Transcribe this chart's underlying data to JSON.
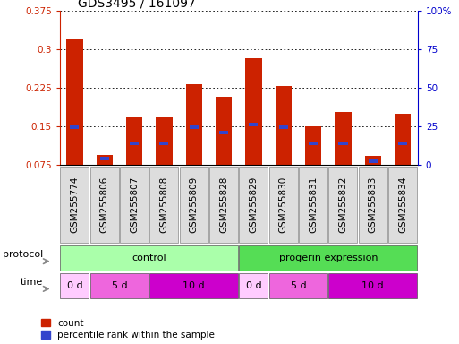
{
  "title": "GDS3495 / 161097",
  "samples": [
    "GSM255774",
    "GSM255806",
    "GSM255807",
    "GSM255808",
    "GSM255809",
    "GSM255828",
    "GSM255829",
    "GSM255830",
    "GSM255831",
    "GSM255832",
    "GSM255833",
    "GSM255834"
  ],
  "bar_heights": [
    0.32,
    0.095,
    0.168,
    0.168,
    0.232,
    0.207,
    0.283,
    0.228,
    0.15,
    0.178,
    0.093,
    0.175
  ],
  "blue_marker_heights": [
    0.148,
    0.088,
    0.118,
    0.118,
    0.148,
    0.138,
    0.153,
    0.148,
    0.118,
    0.118,
    0.083,
    0.118
  ],
  "ylim_left": [
    0.075,
    0.375
  ],
  "ylim_right": [
    0,
    100
  ],
  "yticks_left": [
    0.075,
    0.15,
    0.225,
    0.3,
    0.375
  ],
  "yticks_right": [
    0,
    25,
    50,
    75,
    100
  ],
  "ytick_labels_right": [
    "0",
    "25",
    "50",
    "75",
    "100%"
  ],
  "bar_color": "#cc2200",
  "blue_color": "#3344cc",
  "protocol_ctrl_color": "#aaffaa",
  "protocol_prog_color": "#55dd55",
  "time_color_0d": "#ffccff",
  "time_color_5d": "#ee66dd",
  "time_color_10d": "#cc00cc",
  "sample_cell_color": "#dddddd",
  "protocol_label": "protocol",
  "time_label": "time",
  "legend_count_label": "count",
  "legend_pct_label": "percentile rank within the sample",
  "bg_color": "#ffffff",
  "axis_color_left": "#cc2200",
  "axis_color_right": "#0000cc",
  "title_fontsize": 10,
  "tick_fontsize": 7.5,
  "label_fontsize": 8,
  "cell_fontsize": 7.5
}
